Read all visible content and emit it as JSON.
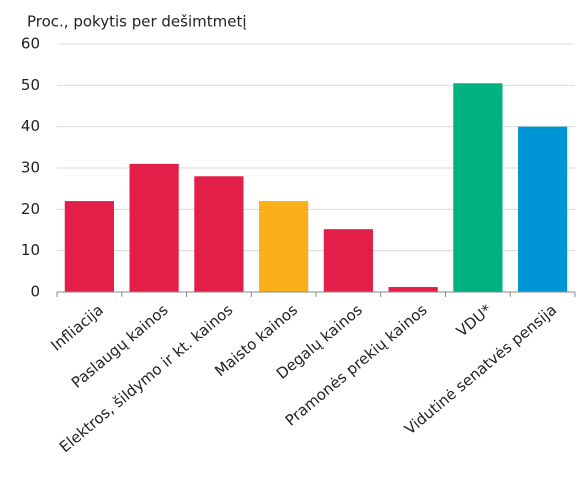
{
  "chart_data": {
    "type": "bar",
    "title": "Proc., pokytis per dešimtmetį",
    "categories": [
      "Infliacija",
      "Paslaugų kainos",
      "Elektros, šildymo ir kt. kainos",
      "Maisto kainos",
      "Degalų kainos",
      "Pramonės prekių kainos",
      "VDU*",
      "Vidutinė senatvės pensija"
    ],
    "values": [
      22,
      31,
      28,
      22,
      15.2,
      1.2,
      50.5,
      40
    ],
    "colors": [
      "#e31e48",
      "#e31e48",
      "#e31e48",
      "#fbaf1b",
      "#e31e48",
      "#e31e48",
      "#00b27f",
      "#0096d6"
    ],
    "ylim": [
      0,
      60
    ],
    "yticks": [
      0,
      10,
      20,
      30,
      40,
      50,
      60
    ],
    "grid": true
  }
}
